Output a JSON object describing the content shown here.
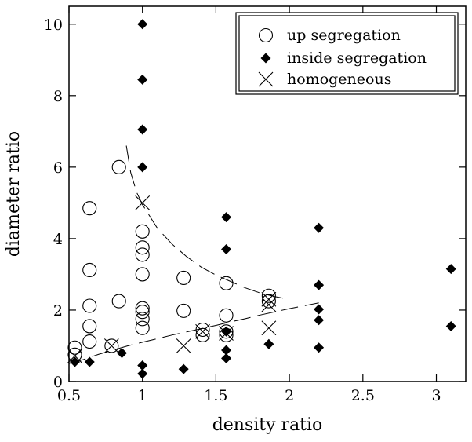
{
  "chart_data": {
    "type": "scatter",
    "title": "",
    "xlabel": "density ratio",
    "ylabel": "diameter ratio",
    "xlim": [
      0.5,
      3.2
    ],
    "ylim": [
      0,
      10.5
    ],
    "xticks": [
      {
        "value": 0.5,
        "label": "0.5"
      },
      {
        "value": 1,
        "label": "1"
      },
      {
        "value": 1.5,
        "label": "1.5"
      },
      {
        "value": 2,
        "label": "2"
      },
      {
        "value": 2.5,
        "label": "2.5"
      },
      {
        "value": 3,
        "label": "3"
      }
    ],
    "yticks": [
      {
        "value": 0,
        "label": "0"
      },
      {
        "value": 2,
        "label": "2"
      },
      {
        "value": 4,
        "label": "4"
      },
      {
        "value": 6,
        "label": "6"
      },
      {
        "value": 8,
        "label": "8"
      },
      {
        "value": 10,
        "label": "10"
      }
    ],
    "grid": false,
    "legend_position": "top-right",
    "series": [
      {
        "name": "up segregation",
        "marker": "open-circle",
        "color": "#000000",
        "points": [
          [
            0.54,
            0.95
          ],
          [
            0.54,
            0.75
          ],
          [
            0.64,
            4.85
          ],
          [
            0.64,
            3.12
          ],
          [
            0.64,
            2.12
          ],
          [
            0.64,
            1.55
          ],
          [
            0.64,
            1.12
          ],
          [
            0.79,
            1.0
          ],
          [
            0.84,
            6.0
          ],
          [
            0.84,
            2.25
          ],
          [
            1.0,
            4.2
          ],
          [
            1.0,
            3.75
          ],
          [
            1.0,
            3.55
          ],
          [
            1.0,
            3.0
          ],
          [
            1.0,
            2.05
          ],
          [
            1.0,
            1.95
          ],
          [
            1.0,
            1.75
          ],
          [
            1.0,
            1.5
          ],
          [
            1.28,
            2.9
          ],
          [
            1.28,
            1.98
          ],
          [
            1.41,
            1.45
          ],
          [
            1.41,
            1.3
          ],
          [
            1.57,
            2.75
          ],
          [
            1.57,
            1.85
          ],
          [
            1.57,
            1.4
          ],
          [
            1.57,
            1.3
          ],
          [
            1.86,
            2.4
          ],
          [
            1.86,
            2.25
          ]
        ]
      },
      {
        "name": "inside segregation",
        "marker": "filled-diamond",
        "color": "#000000",
        "points": [
          [
            0.54,
            0.55
          ],
          [
            0.64,
            0.55
          ],
          [
            0.86,
            0.8
          ],
          [
            1.0,
            10.0
          ],
          [
            1.0,
            8.45
          ],
          [
            1.0,
            7.05
          ],
          [
            1.0,
            6.0
          ],
          [
            1.0,
            0.45
          ],
          [
            1.0,
            0.22
          ],
          [
            1.28,
            0.35
          ],
          [
            1.57,
            4.6
          ],
          [
            1.57,
            3.7
          ],
          [
            1.57,
            1.4
          ],
          [
            1.57,
            0.88
          ],
          [
            1.57,
            0.65
          ],
          [
            1.86,
            1.05
          ],
          [
            2.2,
            4.3
          ],
          [
            2.2,
            2.7
          ],
          [
            2.2,
            2.02
          ],
          [
            2.2,
            1.72
          ],
          [
            2.2,
            0.95
          ],
          [
            3.1,
            3.15
          ],
          [
            3.1,
            1.55
          ]
        ]
      },
      {
        "name": "homogeneous",
        "marker": "cross",
        "color": "#000000",
        "points": [
          [
            0.54,
            0.72
          ],
          [
            0.79,
            1.0
          ],
          [
            1.0,
            5.0
          ],
          [
            1.28,
            1.0
          ],
          [
            1.41,
            1.4
          ],
          [
            1.57,
            1.35
          ],
          [
            1.86,
            2.3
          ],
          [
            1.86,
            2.15
          ],
          [
            1.86,
            1.5
          ]
        ]
      }
    ],
    "fit_curves": [
      {
        "style": "long-dash",
        "points": [
          [
            0.89,
            6.6
          ],
          [
            0.92,
            5.85
          ],
          [
            0.96,
            5.3
          ],
          [
            1.0,
            4.95
          ],
          [
            1.1,
            4.3
          ],
          [
            1.2,
            3.85
          ],
          [
            1.3,
            3.5
          ],
          [
            1.4,
            3.2
          ],
          [
            1.5,
            2.98
          ],
          [
            1.6,
            2.8
          ],
          [
            1.7,
            2.62
          ],
          [
            1.8,
            2.48
          ],
          [
            1.9,
            2.38
          ],
          [
            2.0,
            2.3
          ]
        ]
      },
      {
        "style": "long-dash",
        "points": [
          [
            0.5,
            0.5
          ],
          [
            0.6,
            0.62
          ],
          [
            0.7,
            0.76
          ],
          [
            0.8,
            0.88
          ],
          [
            0.9,
            1.0
          ],
          [
            1.0,
            1.1
          ],
          [
            1.1,
            1.2
          ],
          [
            1.2,
            1.3
          ],
          [
            1.3,
            1.39
          ],
          [
            1.4,
            1.48
          ],
          [
            1.5,
            1.57
          ],
          [
            1.6,
            1.67
          ],
          [
            1.7,
            1.76
          ],
          [
            1.8,
            1.86
          ],
          [
            1.9,
            1.95
          ],
          [
            2.0,
            2.04
          ],
          [
            2.1,
            2.12
          ],
          [
            2.2,
            2.2
          ]
        ]
      }
    ]
  }
}
